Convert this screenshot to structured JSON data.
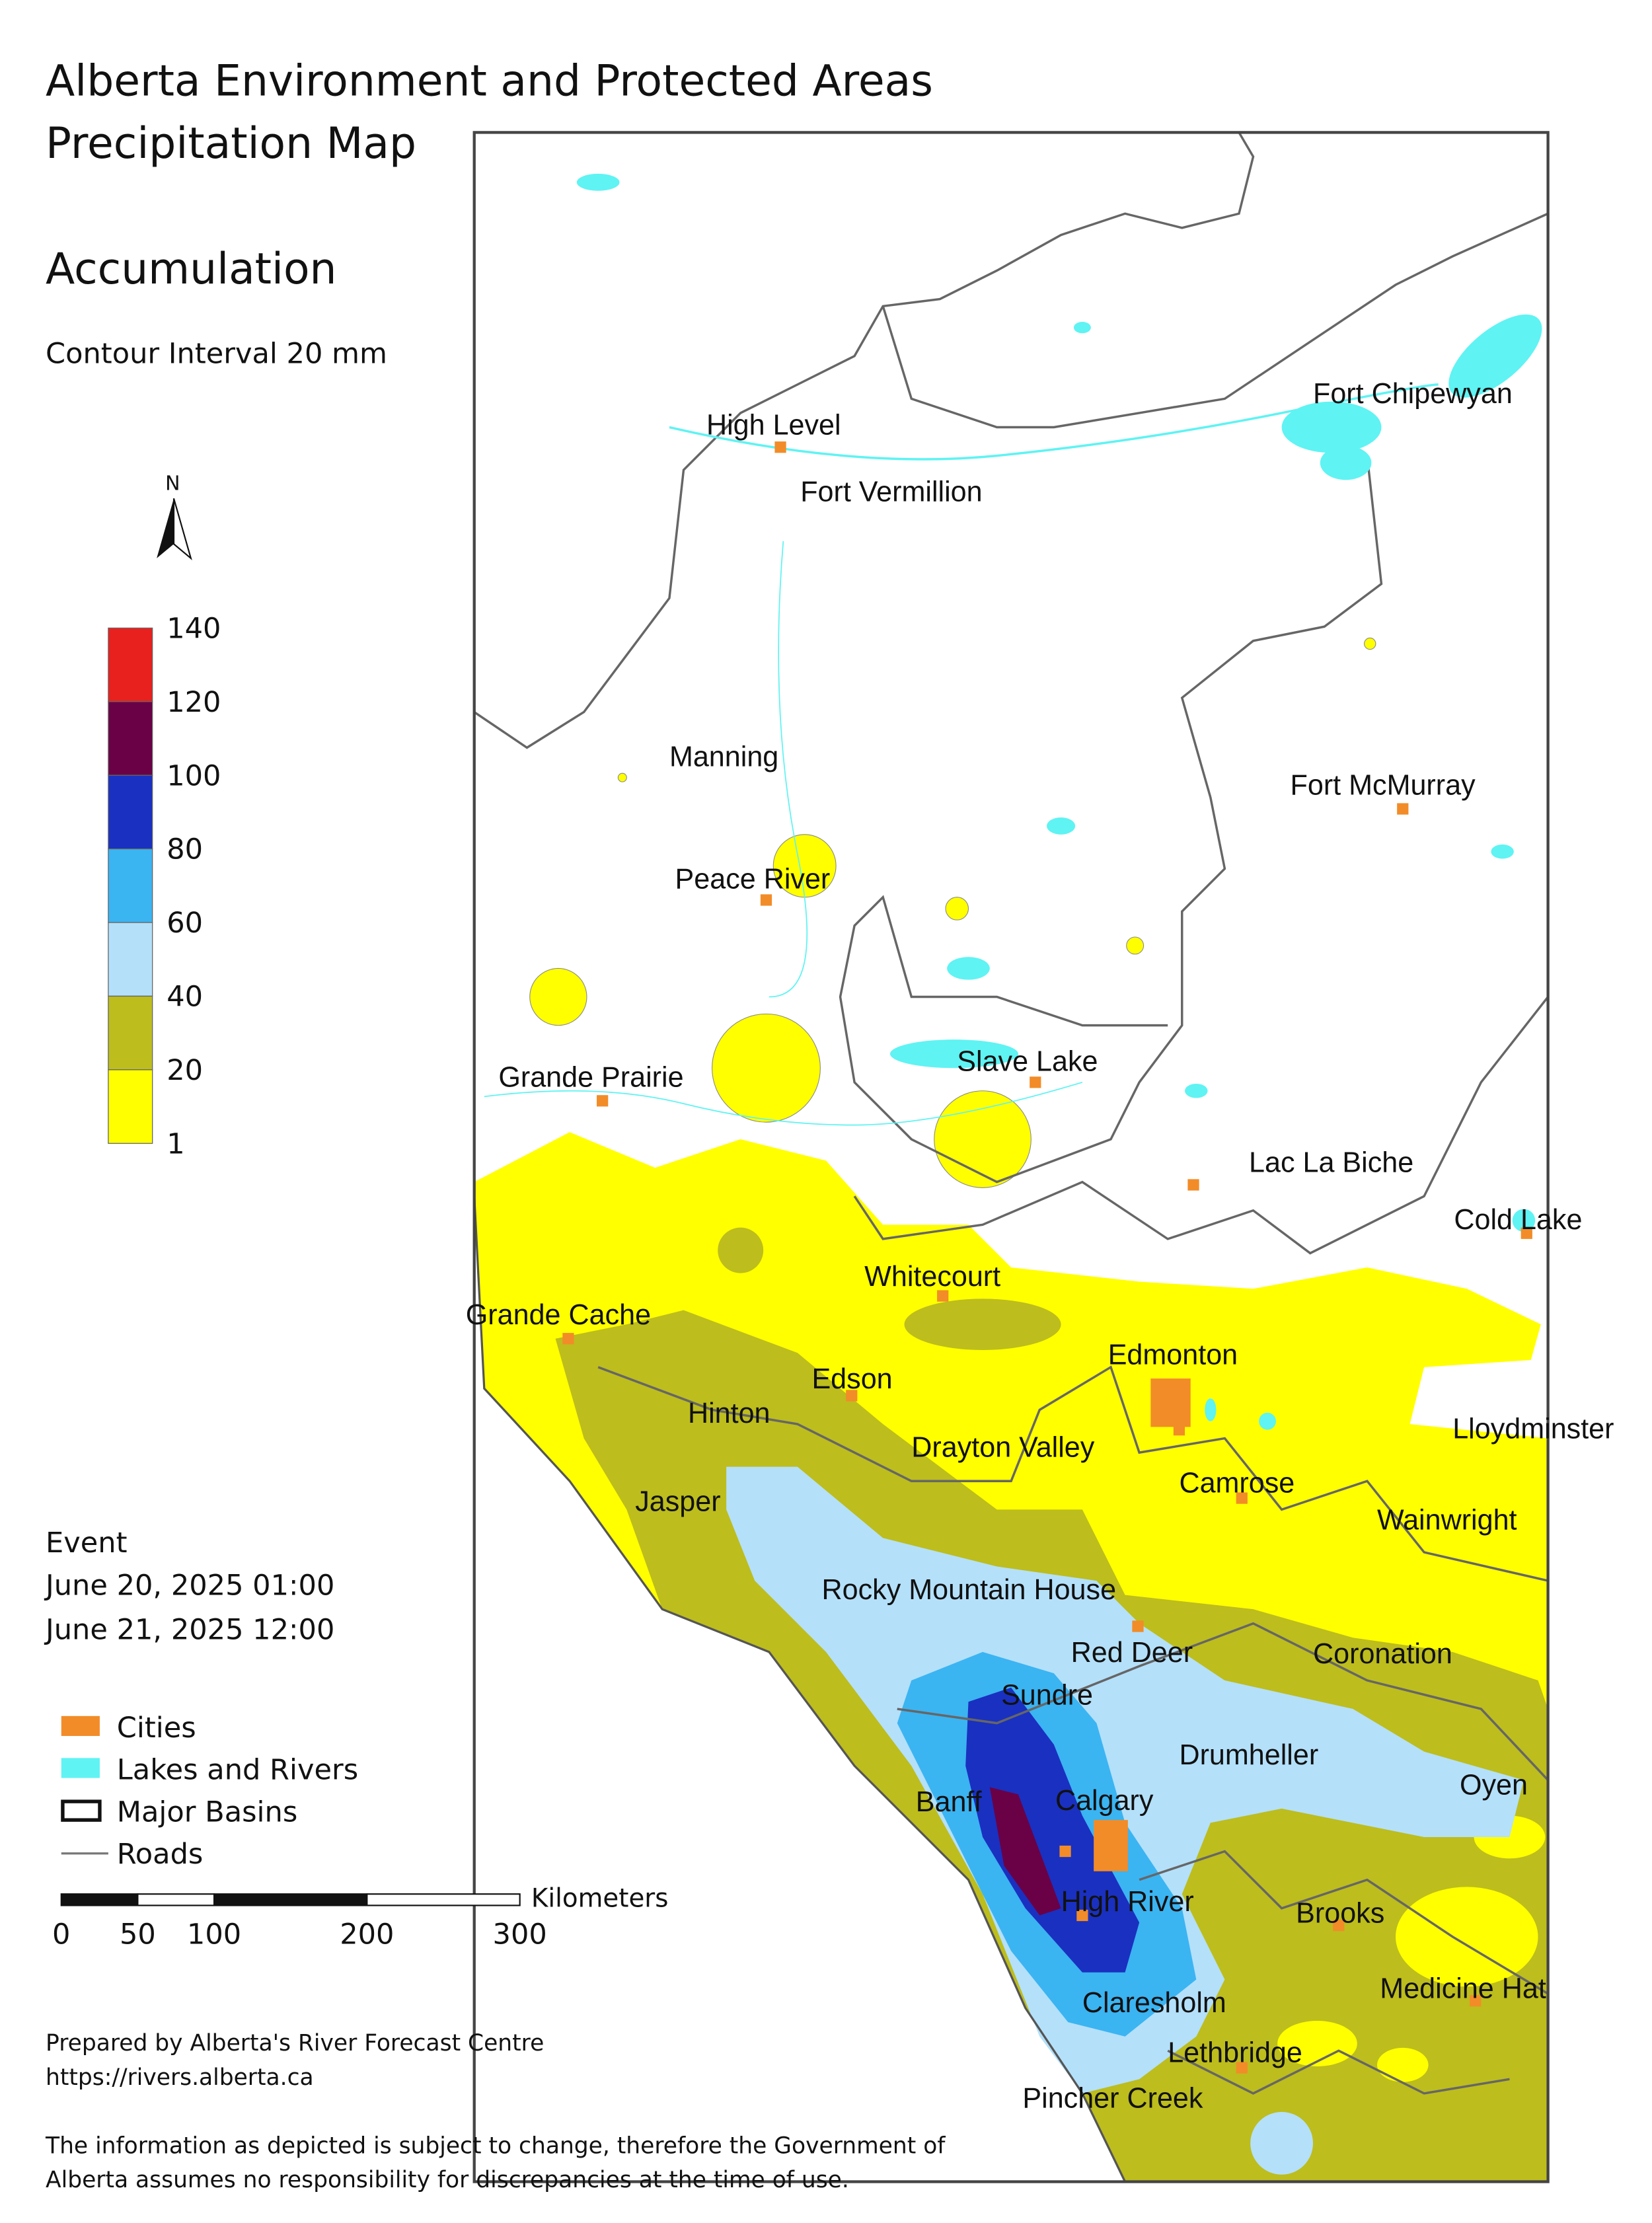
{
  "header": {
    "title_lines": [
      "Alberta Environment and Protected Areas",
      "Precipitation Map"
    ],
    "subtitle": "Accumulation",
    "contour_interval": "Contour Interval 20 mm"
  },
  "north_label": "N",
  "color_scale": {
    "ticks": [
      140,
      120,
      100,
      80,
      60,
      40,
      20,
      1
    ],
    "colors": [
      "#e8201e",
      "#6a0046",
      "#1a30c0",
      "#3bb4f2",
      "#b4e0fa",
      "#bdbd1d",
      "#ffff00"
    ]
  },
  "event": {
    "label": "Event",
    "start": "June 20, 2025 01:00",
    "end": "June 21, 2025 12:00"
  },
  "legend": [
    {
      "label": "Cities",
      "color": "#f28c28"
    },
    {
      "label": "Lakes and Rivers",
      "color": "#5ff3f3"
    },
    {
      "label": "Major Basins"
    },
    {
      "label": "Roads"
    }
  ],
  "scale_bar": {
    "unit": "Kilometers",
    "ticks": [
      0,
      50,
      100,
      200,
      300
    ]
  },
  "credits": [
    "Prepared by Alberta's River Forecast Centre",
    "https://rivers.alberta.ca"
  ],
  "disclaimer": [
    "The information as depicted is subject to change, therefore the Government of",
    "Alberta assumes no responsibility for discrepancies at the time of use."
  ],
  "places": [
    "High Level",
    "Fort Vermillion",
    "Fort Chipewyan",
    "Manning",
    "Fort McMurray",
    "Peace River",
    "Grande Prairie",
    "Slave Lake",
    "Lac La Biche",
    "Cold Lake",
    "Whitecourt",
    "Grande Cache",
    "Edmonton",
    "Edson",
    "Hinton",
    "Lloydminster",
    "Drayton Valley",
    "Camrose",
    "Jasper",
    "Wainwright",
    "Rocky Mountain House",
    "Red Deer",
    "Coronation",
    "Sundre",
    "Drumheller",
    "Oyen",
    "Banff",
    "Calgary",
    "High River",
    "Brooks",
    "Medicine Hat",
    "Claresholm",
    "Lethbridge",
    "Pincher Creek"
  ]
}
